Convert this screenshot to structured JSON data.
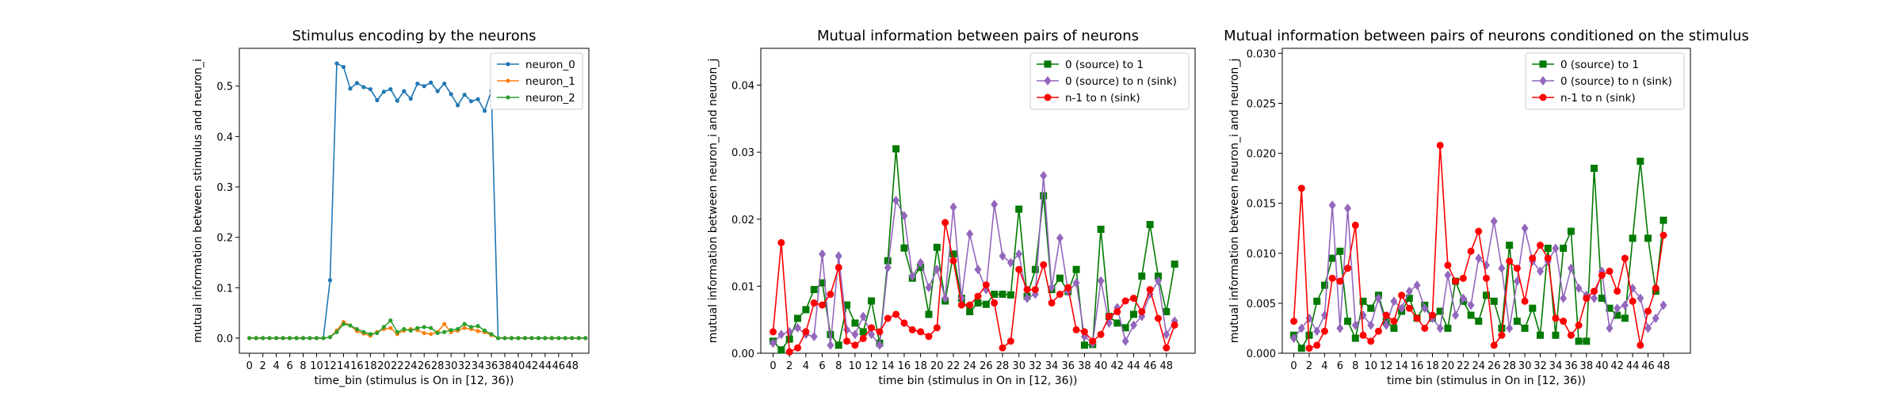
{
  "chart_data": [
    {
      "type": "line",
      "title": "Stimulus encoding by the neurons",
      "xlabel": "time_bin (stimulus is On in [12, 36))",
      "ylabel": "mutual information between stimulus and neuron_i",
      "xlim": [
        -1.5,
        50.5
      ],
      "ylim": [
        -0.03,
        0.575
      ],
      "xticks": [
        0,
        2,
        4,
        6,
        8,
        10,
        12,
        14,
        16,
        18,
        20,
        22,
        24,
        26,
        28,
        30,
        32,
        34,
        36,
        38,
        40,
        42,
        44,
        46,
        48
      ],
      "yticks": [
        0.0,
        0.1,
        0.2,
        0.3,
        0.4,
        0.5
      ],
      "ytick_labels": [
        "0.0",
        "0.1",
        "0.2",
        "0.3",
        "0.4",
        "0.5"
      ],
      "legend_position": "top-right",
      "series": [
        {
          "name": "neuron_0",
          "color": "#1f77b4",
          "marker": "dot",
          "values": [
            0,
            0,
            0,
            0,
            0,
            0,
            0,
            0,
            0,
            0,
            0,
            0,
            0.115,
            0.545,
            0.538,
            0.495,
            0.506,
            0.498,
            0.494,
            0.472,
            0.489,
            0.494,
            0.471,
            0.49,
            0.475,
            0.505,
            0.5,
            0.507,
            0.49,
            0.505,
            0.484,
            0.462,
            0.483,
            0.47,
            0.474,
            0.451,
            0.491,
            0,
            0,
            0,
            0,
            0,
            0,
            0,
            0,
            0,
            0,
            0,
            0,
            0,
            0
          ]
        },
        {
          "name": "neuron_1",
          "color": "#ff7f0e",
          "marker": "dot",
          "values": [
            0,
            0,
            0,
            0,
            0,
            0,
            0,
            0,
            0,
            0,
            0,
            0,
            0.002,
            0.015,
            0.032,
            0.025,
            0.014,
            0.009,
            0.005,
            0.012,
            0.018,
            0.02,
            0.008,
            0.015,
            0.018,
            0.016,
            0.01,
            0.008,
            0.012,
            0.028,
            0.012,
            0.015,
            0.02,
            0.018,
            0.014,
            0.012,
            0.006,
            0,
            0,
            0,
            0,
            0,
            0,
            0,
            0,
            0,
            0,
            0,
            0,
            0,
            0
          ]
        },
        {
          "name": "neuron_2",
          "color": "#2ca02c",
          "marker": "dot",
          "values": [
            0,
            0,
            0,
            0,
            0,
            0,
            0,
            0,
            0,
            0,
            0,
            0,
            0.002,
            0.012,
            0.028,
            0.025,
            0.018,
            0.012,
            0.008,
            0.01,
            0.022,
            0.035,
            0.012,
            0.018,
            0.015,
            0.02,
            0.022,
            0.02,
            0.01,
            0.012,
            0.016,
            0.018,
            0.028,
            0.022,
            0.024,
            0.015,
            0.008,
            0,
            0,
            0,
            0,
            0,
            0,
            0,
            0,
            0,
            0,
            0,
            0,
            0,
            0
          ]
        }
      ]
    },
    {
      "type": "line",
      "title": "Mutual information between pairs of neurons",
      "xlabel": "time bin (stimulus in On in [12, 36))",
      "ylabel": "mutual information between neuron_i and neuron_j",
      "xlim": [
        -1.5,
        51.5
      ],
      "ylim": [
        0,
        0.0455
      ],
      "xticks": [
        0,
        2,
        4,
        6,
        8,
        10,
        12,
        14,
        16,
        18,
        20,
        22,
        24,
        26,
        28,
        30,
        32,
        34,
        36,
        38,
        40,
        42,
        44,
        46,
        48
      ],
      "yticks": [
        0.0,
        0.01,
        0.02,
        0.03,
        0.04
      ],
      "ytick_labels": [
        "0.00",
        "0.01",
        "0.02",
        "0.03",
        "0.04"
      ],
      "legend_position": "top-right",
      "series": [
        {
          "name": "0 (source) to 1",
          "color": "#007a00",
          "marker": "square",
          "values": [
            0.0018,
            0.0005,
            0.0021,
            0.0052,
            0.0065,
            0.0095,
            0.0105,
            0.0028,
            0.0012,
            0.0072,
            0.0045,
            0.0032,
            0.0078,
            0.0015,
            0.0138,
            0.0305,
            0.0157,
            0.0112,
            0.0128,
            0.0058,
            0.0158,
            0.0078,
            0.0148,
            0.0082,
            0.0062,
            0.0075,
            0.0073,
            0.0088,
            0.0088,
            0.0087,
            0.0215,
            0.0085,
            0.0125,
            0.0235,
            0.0095,
            0.0112,
            0.0092,
            0.0125,
            0.0012,
            0.0013,
            0.0185,
            0.0055,
            0.0045,
            0.0038,
            0.0058,
            0.0115,
            0.0192,
            0.0115,
            0.0062,
            0.0133
          ]
        },
        {
          "name": "0 (source) to n (sink)",
          "color": "#9467bd",
          "marker": "diamond",
          "values": [
            0.0015,
            0.0028,
            0.0032,
            0.0038,
            0.0028,
            0.0025,
            0.0148,
            0.0012,
            0.0145,
            0.0035,
            0.0028,
            0.0055,
            0.0028,
            0.0012,
            0.0128,
            0.0228,
            0.0205,
            0.0115,
            0.0135,
            0.0098,
            0.0125,
            0.0082,
            0.0218,
            0.0082,
            0.0178,
            0.0125,
            0.0095,
            0.0222,
            0.0145,
            0.0135,
            0.0148,
            0.0082,
            0.0088,
            0.0265,
            0.0098,
            0.0172,
            0.0092,
            0.0105,
            0.0025,
            0.0015,
            0.0108,
            0.0045,
            0.0068,
            0.0018,
            0.0042,
            0.0055,
            0.0088,
            0.0108,
            0.0028,
            0.0048
          ]
        },
        {
          "name": "n-1 to n (sink)",
          "color": "#ff0000",
          "marker": "circle",
          "values": [
            0.0032,
            0.0165,
            0.0002,
            0.0008,
            0.0032,
            0.0075,
            0.0072,
            0.0088,
            0.0128,
            0.0018,
            0.0012,
            0.0022,
            0.0038,
            0.0032,
            0.0052,
            0.0058,
            0.0045,
            0.0035,
            0.0032,
            0.0025,
            0.0038,
            0.0195,
            0.0138,
            0.0072,
            0.0072,
            0.0085,
            0.0102,
            0.0075,
            0.0008,
            0.0018,
            0.0125,
            0.0095,
            0.0095,
            0.0132,
            0.0075,
            0.0088,
            0.0098,
            0.0035,
            0.0032,
            0.0018,
            0.0028,
            0.0055,
            0.0062,
            0.0078,
            0.0082,
            0.0062,
            0.0095,
            0.0052,
            0.0008,
            0.0042
          ]
        }
      ]
    },
    {
      "type": "line",
      "title": "Mutual information between pairs of neurons conditioned on the stimulus",
      "xlabel": "time bin (stimulus in On in [12, 36))",
      "ylabel": "mutual information between neuron_i and neuron_j",
      "xlim": [
        -1.5,
        51.5
      ],
      "ylim": [
        0,
        0.0305
      ],
      "xticks": [
        0,
        2,
        4,
        6,
        8,
        10,
        12,
        14,
        16,
        18,
        20,
        22,
        24,
        26,
        28,
        30,
        32,
        34,
        36,
        38,
        40,
        42,
        44,
        46,
        48
      ],
      "yticks": [
        0.0,
        0.005,
        0.01,
        0.015,
        0.02,
        0.025,
        0.03
      ],
      "ytick_labels": [
        "0.000",
        "0.005",
        "0.010",
        "0.015",
        "0.020",
        "0.025",
        "0.030"
      ],
      "legend_position": "top-right",
      "series": [
        {
          "name": "0 (source) to 1",
          "color": "#007a00",
          "marker": "square",
          "values": [
            0.0018,
            0.0005,
            0.0018,
            0.0052,
            0.0068,
            0.0095,
            0.0102,
            0.0032,
            0.0015,
            0.0052,
            0.0045,
            0.0058,
            0.0032,
            0.0025,
            0.0042,
            0.0055,
            0.0035,
            0.0048,
            0.0035,
            0.0042,
            0.0025,
            0.0072,
            0.0052,
            0.0038,
            0.0032,
            0.0058,
            0.0052,
            0.0025,
            0.0108,
            0.0032,
            0.0025,
            0.0045,
            0.0018,
            0.0105,
            0.0018,
            0.0105,
            0.0122,
            0.0012,
            0.0012,
            0.0185,
            0.0055,
            0.0045,
            0.0038,
            0.0035,
            0.0115,
            0.0192,
            0.0115,
            0.0062,
            0.0133
          ]
        },
        {
          "name": "0 (source) to n (sink)",
          "color": "#9467bd",
          "marker": "diamond",
          "values": [
            0.0015,
            0.0025,
            0.0035,
            0.0022,
            0.0038,
            0.0148,
            0.0025,
            0.0145,
            0.0028,
            0.0038,
            0.0028,
            0.0055,
            0.0028,
            0.0052,
            0.0045,
            0.0062,
            0.0068,
            0.0045,
            0.0035,
            0.0025,
            0.0078,
            0.0038,
            0.0055,
            0.0048,
            0.0095,
            0.0088,
            0.0132,
            0.0085,
            0.0025,
            0.0072,
            0.0125,
            0.0092,
            0.0082,
            0.0092,
            0.0105,
            0.0055,
            0.0085,
            0.0065,
            0.0058,
            0.0055,
            0.0082,
            0.0025,
            0.0045,
            0.0048,
            0.0065,
            0.0055,
            0.0025,
            0.0035,
            0.0048
          ]
        },
        {
          "name": "n-1 to n (sink)",
          "color": "#ff0000",
          "marker": "circle",
          "values": [
            0.0032,
            0.0165,
            0.0005,
            0.0008,
            0.0022,
            0.0075,
            0.0072,
            0.0085,
            0.0128,
            0.0018,
            0.0012,
            0.0022,
            0.0038,
            0.0032,
            0.0058,
            0.0045,
            0.0035,
            0.0025,
            0.0038,
            0.0208,
            0.0088,
            0.0072,
            0.0075,
            0.0102,
            0.0122,
            0.0075,
            0.0008,
            0.0018,
            0.0092,
            0.0085,
            0.0052,
            0.0095,
            0.0108,
            0.0095,
            0.0035,
            0.0032,
            0.0018,
            0.0028,
            0.0055,
            0.0062,
            0.0078,
            0.0082,
            0.0062,
            0.0095,
            0.0052,
            0.0008,
            0.0042,
            0.0065,
            0.0118
          ]
        }
      ]
    }
  ]
}
